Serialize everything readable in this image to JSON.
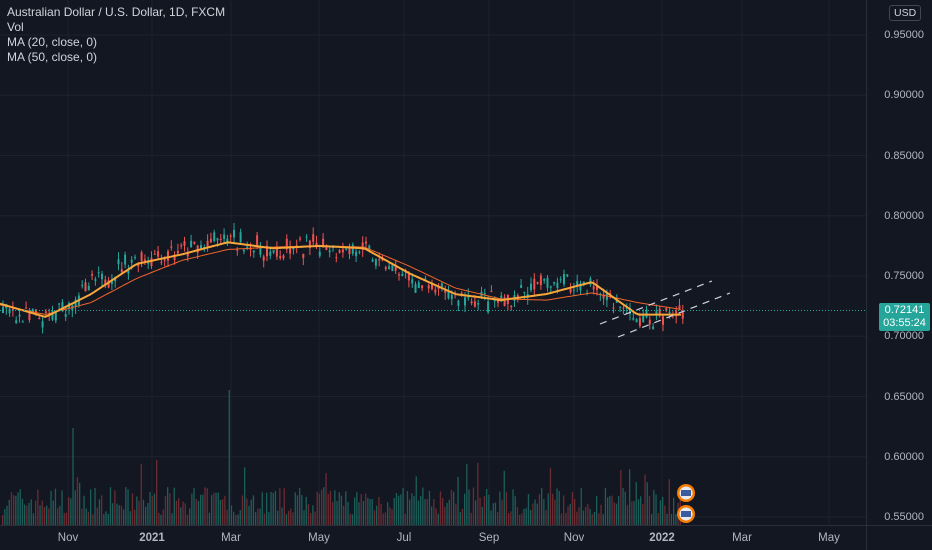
{
  "legend": {
    "title": "Australian Dollar / U.S. Dollar, 1D, FXCM",
    "vol": "Vol",
    "ma20": "MA (20, close, 0)",
    "ma50": "MA (50, close, 0)"
  },
  "currency_button": "USD",
  "last_price": {
    "price": "0.72141",
    "countdown": "03:55:24"
  },
  "colors": {
    "background": "#131722",
    "up": "#26a69a",
    "down": "#ef5350",
    "ma20": "#f7a63a",
    "ma50": "#f2652b",
    "grid": "#1e222d"
  },
  "chart_data": {
    "type": "line",
    "x_tick_labels": [
      "Nov",
      "2021",
      "Mar",
      "May",
      "Jul",
      "Sep",
      "Nov",
      "2022",
      "Mar",
      "May"
    ],
    "y_tick_labels": [
      "0.95000",
      "0.90000",
      "0.85000",
      "0.80000",
      "0.75000",
      "0.70000",
      "0.65000",
      "0.60000",
      "0.55000"
    ],
    "ylim": [
      0.5475,
      0.97
    ],
    "series": [
      {
        "name": "Australian Dollar / U.S. Dollar",
        "points": [
          [
            "Oct",
            0.722
          ],
          [
            "Nov",
            0.712
          ],
          [
            "Dec",
            0.742
          ],
          [
            "2021",
            0.765
          ],
          [
            "Feb",
            0.77
          ],
          [
            "Mar",
            0.781
          ],
          [
            "Apr",
            0.768
          ],
          [
            "May",
            0.777
          ],
          [
            "Jun",
            0.77
          ],
          [
            "Jul",
            0.745
          ],
          [
            "Aug",
            0.732
          ],
          [
            "Sep",
            0.727
          ],
          [
            "Oct",
            0.745
          ],
          [
            "Nov",
            0.742
          ],
          [
            "Dec",
            0.712
          ],
          [
            "2022",
            0.722
          ]
        ]
      },
      {
        "name": "MA (20, close, 0)",
        "points": [
          [
            "Oct",
            0.727
          ],
          [
            "Nov",
            0.716
          ],
          [
            "Dec",
            0.735
          ],
          [
            "2021",
            0.76
          ],
          [
            "Feb",
            0.768
          ],
          [
            "Mar",
            0.778
          ],
          [
            "Apr",
            0.773
          ],
          [
            "May",
            0.775
          ],
          [
            "Jun",
            0.773
          ],
          [
            "Jul",
            0.752
          ],
          [
            "Aug",
            0.735
          ],
          [
            "Sep",
            0.73
          ],
          [
            "Oct",
            0.735
          ],
          [
            "Nov",
            0.745
          ],
          [
            "Dec",
            0.718
          ],
          [
            "2022",
            0.718
          ]
        ]
      },
      {
        "name": "MA (50, close, 0)",
        "points": [
          [
            "Oct",
            0.726
          ],
          [
            "Nov",
            0.718
          ],
          [
            "Dec",
            0.728
          ],
          [
            "2021",
            0.748
          ],
          [
            "Feb",
            0.763
          ],
          [
            "Mar",
            0.772
          ],
          [
            "Apr",
            0.774
          ],
          [
            "May",
            0.775
          ],
          [
            "Jun",
            0.774
          ],
          [
            "Jul",
            0.758
          ],
          [
            "Aug",
            0.74
          ],
          [
            "Sep",
            0.731
          ],
          [
            "Oct",
            0.73
          ],
          [
            "Nov",
            0.736
          ],
          [
            "Dec",
            0.728
          ],
          [
            "2022",
            0.722
          ]
        ]
      }
    ],
    "volume": "shown",
    "channel": "parallel dashed trend lines from Dec to Feb"
  }
}
